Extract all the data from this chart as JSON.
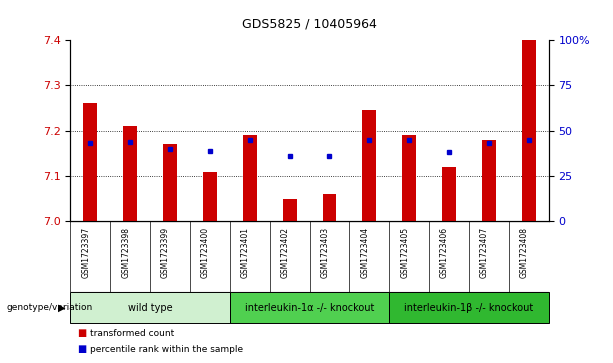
{
  "title": "GDS5825 / 10405964",
  "samples": [
    "GSM1723397",
    "GSM1723398",
    "GSM1723399",
    "GSM1723400",
    "GSM1723401",
    "GSM1723402",
    "GSM1723403",
    "GSM1723404",
    "GSM1723405",
    "GSM1723406",
    "GSM1723407",
    "GSM1723408"
  ],
  "red_values": [
    7.26,
    7.21,
    7.17,
    7.11,
    7.19,
    7.05,
    7.06,
    7.245,
    7.19,
    7.12,
    7.18,
    7.4
  ],
  "blue_values": [
    43,
    44,
    40,
    39,
    45,
    36,
    36,
    45,
    45,
    38,
    43,
    45
  ],
  "ymin": 7.0,
  "ymax": 7.4,
  "yticks": [
    7.0,
    7.1,
    7.2,
    7.3,
    7.4
  ],
  "right_yticks": [
    0,
    25,
    50,
    75,
    100
  ],
  "right_yticklabels": [
    "0",
    "25",
    "50",
    "75",
    "100%"
  ],
  "groups": [
    {
      "label": "wild type",
      "start": 0,
      "end": 4,
      "color": "#d0f0d0"
    },
    {
      "label": "interleukin-1α -/- knockout",
      "start": 4,
      "end": 8,
      "color": "#50d050"
    },
    {
      "label": "interleukin-1β -/- knockout",
      "start": 8,
      "end": 12,
      "color": "#30b830"
    }
  ],
  "genotype_label": "genotype/variation",
  "red_color": "#cc0000",
  "blue_color": "#0000cc",
  "legend_red": "transformed count",
  "legend_blue": "percentile rank within the sample",
  "bar_width": 0.35,
  "tick_area_color": "#cccccc",
  "grid_color": "#000000"
}
